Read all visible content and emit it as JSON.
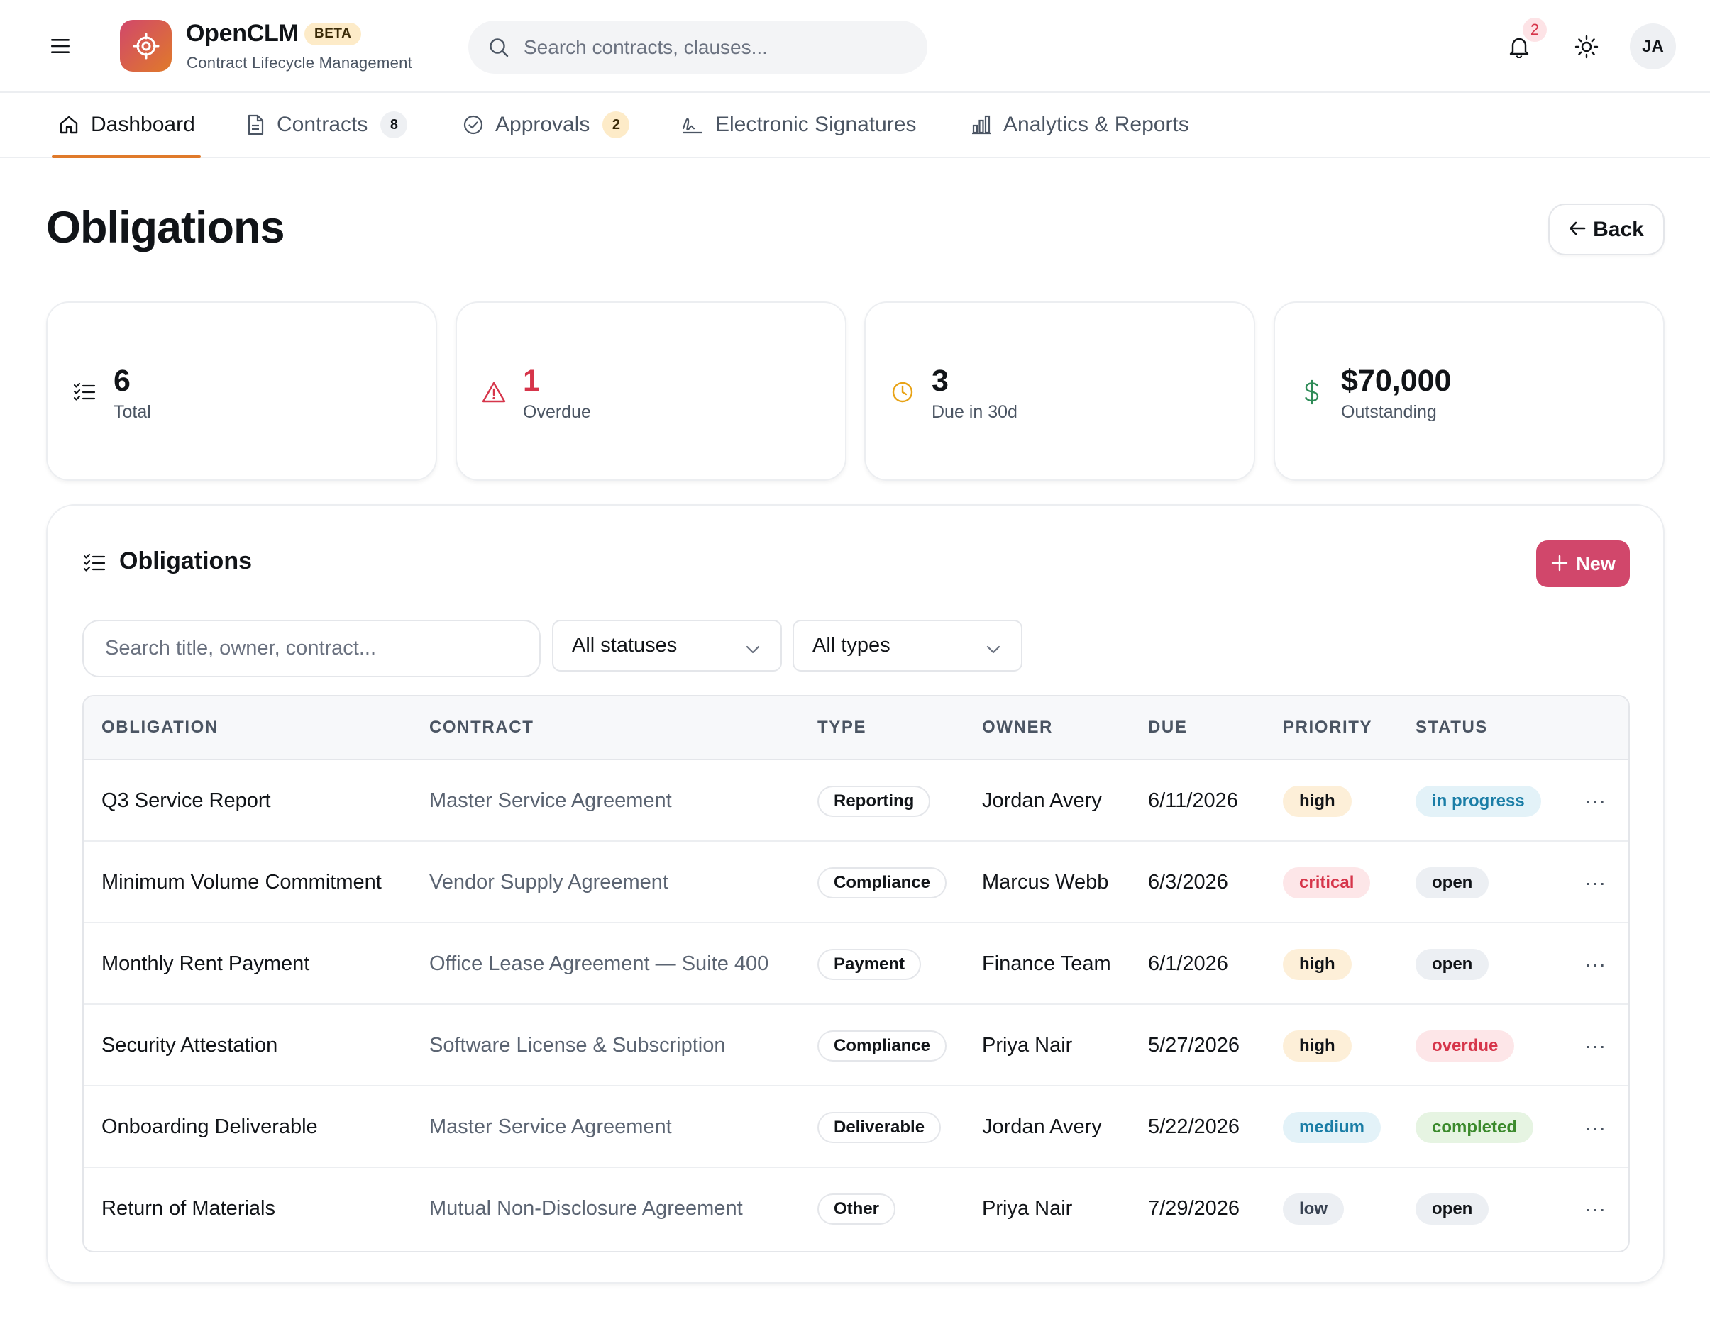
{
  "app": {
    "name": "OpenCLM",
    "badge": "BETA",
    "subtitle": "Contract Lifecycle Management",
    "search_placeholder": "Search contracts, clauses...",
    "notifications_count": "2",
    "user_initials": "JA"
  },
  "nav": {
    "tabs": [
      {
        "label": "Dashboard",
        "icon": "home-icon",
        "active": true
      },
      {
        "label": "Contracts",
        "icon": "document-icon",
        "badge": "8"
      },
      {
        "label": "Approvals",
        "icon": "check-circle-icon",
        "badge": "2"
      },
      {
        "label": "Electronic Signatures",
        "icon": "signature-icon"
      },
      {
        "label": "Analytics & Reports",
        "icon": "bar-chart-icon"
      }
    ]
  },
  "page": {
    "title": "Obligations",
    "back_label": "Back"
  },
  "stats": [
    {
      "value": "6",
      "label": "Total",
      "icon": "list-check-icon",
      "color": "#111418"
    },
    {
      "value": "1",
      "label": "Overdue",
      "icon": "warning-icon",
      "color": "#d6354a"
    },
    {
      "value": "3",
      "label": "Due in 30d",
      "icon": "clock-icon",
      "color": "#111418"
    },
    {
      "value": "$70,000",
      "label": "Outstanding",
      "icon": "dollar-icon",
      "color": "#111418"
    }
  ],
  "panel": {
    "title": "Obligations",
    "new_label": "New",
    "filter_placeholder": "Search title, owner, contract...",
    "status_filter": "All statuses",
    "type_filter": "All types"
  },
  "table": {
    "columns": [
      "OBLIGATION",
      "CONTRACT",
      "TYPE",
      "OWNER",
      "DUE",
      "PRIORITY",
      "STATUS"
    ],
    "rows": [
      {
        "title": "Q3 Service Report",
        "contract": "Master Service Agreement",
        "type": "Reporting",
        "owner": "Jordan Avery",
        "due": "6/11/2026",
        "priority": "high",
        "status": "in progress"
      },
      {
        "title": "Minimum Volume Commitment",
        "contract": "Vendor Supply Agreement",
        "type": "Compliance",
        "owner": "Marcus Webb",
        "due": "6/3/2026",
        "priority": "critical",
        "status": "open"
      },
      {
        "title": "Monthly Rent Payment",
        "contract": "Office Lease Agreement — Suite 400",
        "type": "Payment",
        "owner": "Finance Team",
        "due": "6/1/2026",
        "priority": "high",
        "status": "open"
      },
      {
        "title": "Security Attestation",
        "contract": "Software License & Subscription",
        "type": "Compliance",
        "owner": "Priya Nair",
        "due": "5/27/2026",
        "priority": "high",
        "status": "overdue"
      },
      {
        "title": "Onboarding Deliverable",
        "contract": "Master Service Agreement",
        "type": "Deliverable",
        "owner": "Jordan Avery",
        "due": "5/22/2026",
        "priority": "medium",
        "status": "completed"
      },
      {
        "title": "Return of Materials",
        "contract": "Mutual Non-Disclosure Agreement",
        "type": "Other",
        "owner": "Priya Nair",
        "due": "7/29/2026",
        "priority": "low",
        "status": "open"
      }
    ],
    "more_label": "···"
  },
  "colors": {
    "accent": "#e07a2a",
    "brand": "#d1476b",
    "danger": "#d6354a",
    "success": "#2e8b57"
  }
}
